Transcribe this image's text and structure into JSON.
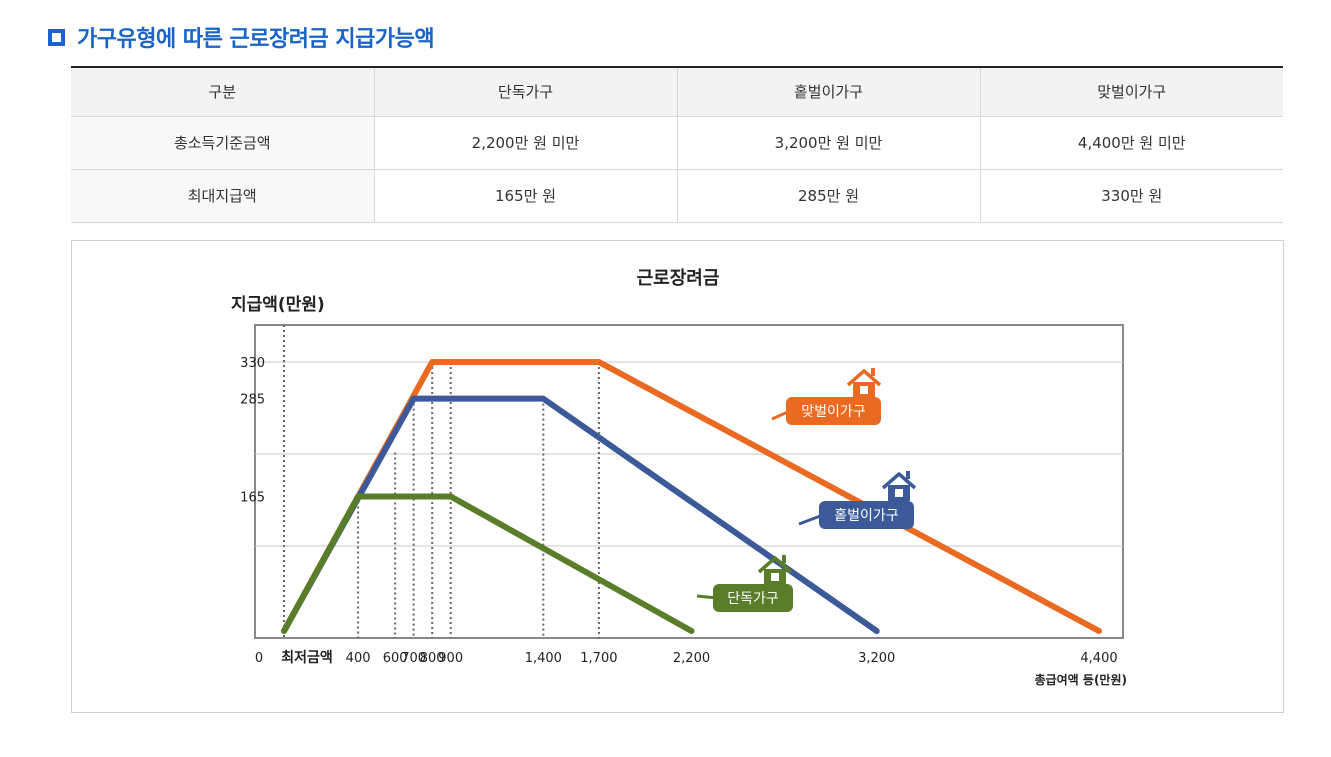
{
  "heading": {
    "text": "가구유형에 따른 근로장려금 지급가능액",
    "icon": "square-bullet-icon",
    "color": "#1a63c9"
  },
  "table": {
    "headers": [
      "구분",
      "단독가구",
      "홑벌이가구",
      "맞벌이가구"
    ],
    "rows": [
      [
        "총소득기준금액",
        "2,200만 원 미만",
        "3,200만 원 미만",
        "4,400만 원 미만"
      ],
      [
        "최대지급액",
        "165만 원",
        "285만 원",
        "330만 원"
      ]
    ]
  },
  "chart_data": {
    "type": "line",
    "title": "근로장려금",
    "ylabel": "지급액(만원)",
    "xlabel": "총급여액 등(만원)",
    "x_zero_label": "0",
    "x_min_label": "최저금액",
    "xlim": [
      0,
      4400
    ],
    "ylim": [
      0,
      330
    ],
    "y_ticks": [
      165,
      285,
      330
    ],
    "x_ticks": [
      400,
      600,
      700,
      800,
      900,
      1400,
      1700,
      2200,
      3200,
      4400
    ],
    "x_tick_labels": [
      "400",
      "600",
      "700",
      "800",
      "900",
      "1,400",
      "1,700",
      "2,200",
      "3,200",
      "4,400"
    ],
    "grid": true,
    "series": [
      {
        "name": "단독가구",
        "color": "#5a7d2a",
        "icon": "house-icon",
        "x": [
          0,
          400,
          900,
          2200
        ],
        "y": [
          0,
          165,
          165,
          0
        ]
      },
      {
        "name": "홑벌이가구",
        "color": "#3c5a99",
        "icon": "house-icon",
        "x": [
          0,
          700,
          1400,
          3200
        ],
        "y": [
          0,
          285,
          285,
          0
        ]
      },
      {
        "name": "맞벌이가구",
        "color": "#ea6a21",
        "icon": "house-icon",
        "x": [
          0,
          800,
          1700,
          4400
        ],
        "y": [
          0,
          330,
          330,
          0
        ]
      }
    ]
  }
}
